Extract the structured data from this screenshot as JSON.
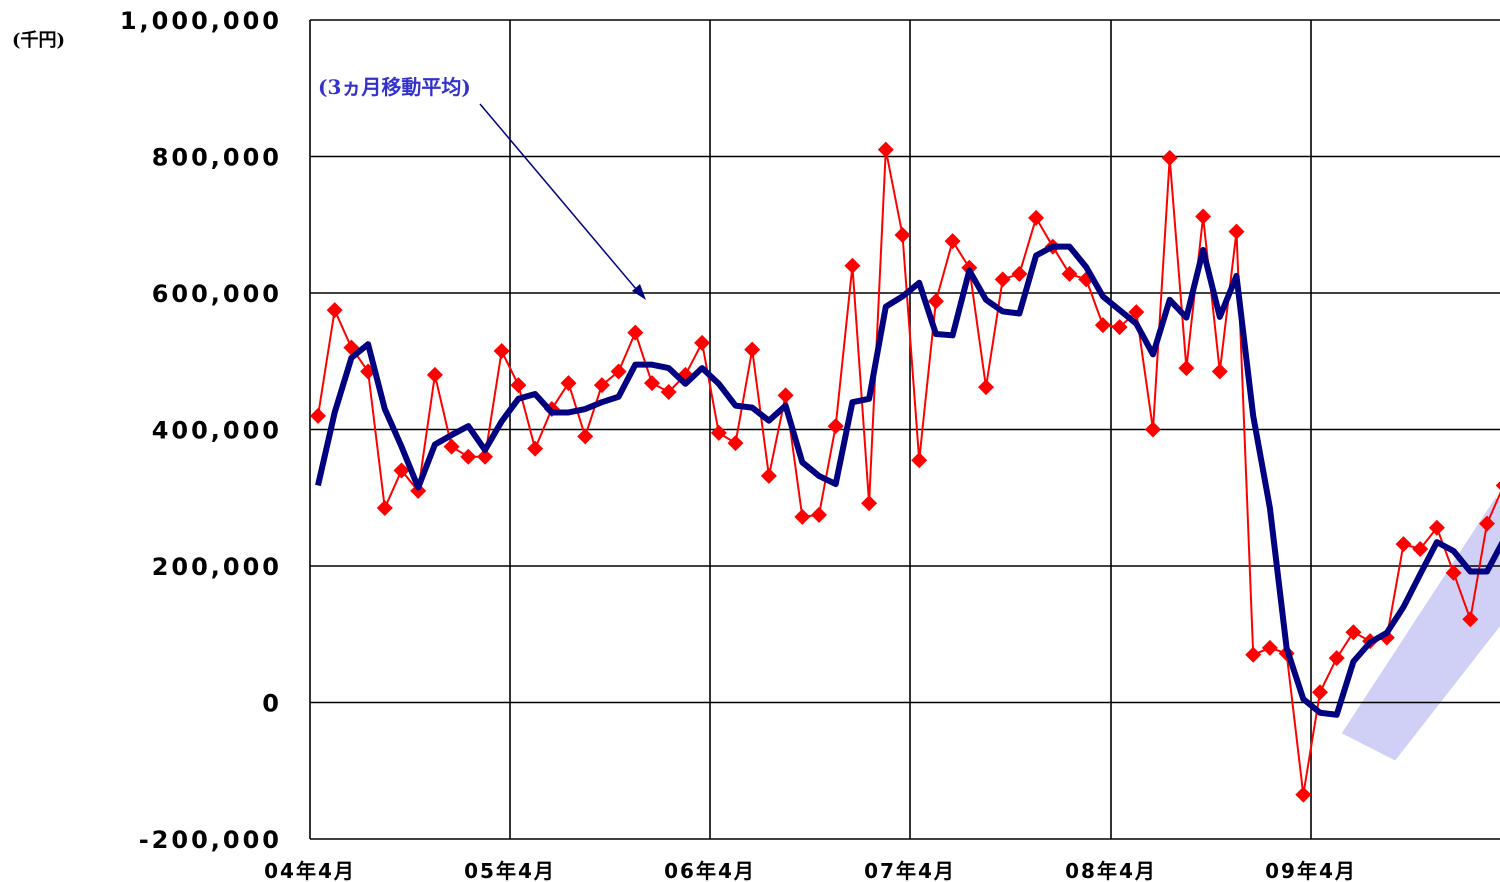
{
  "chart_data": {
    "type": "line",
    "unit_label": "(千円)",
    "annotation": "(3ヵ月移動平均)",
    "ylim": [
      -200000,
      1000000
    ],
    "y_ticks": [
      {
        "value": 1000000,
        "label": "1,000,000"
      },
      {
        "value": 800000,
        "label": "800,000"
      },
      {
        "value": 600000,
        "label": "600,000"
      },
      {
        "value": 400000,
        "label": "400,000"
      },
      {
        "value": 200000,
        "label": "200,000"
      },
      {
        "value": 0,
        "label": "0"
      },
      {
        "value": -200000,
        "label": "-200,000"
      }
    ],
    "x_ticks": [
      {
        "index": 0,
        "label": "04年4月"
      },
      {
        "index": 12,
        "label": "05年4月"
      },
      {
        "index": 24,
        "label": "06年4月"
      },
      {
        "index": 36,
        "label": "07年4月"
      },
      {
        "index": 48,
        "label": "08年4月"
      },
      {
        "index": 60,
        "label": "09年4月"
      }
    ],
    "grid": true,
    "colors": {
      "monthly": "#ff0000",
      "moving_average": "#000080",
      "trend_band": "#c8c8f5"
    },
    "series": [
      {
        "key": "monthly",
        "values": [
          420000,
          575000,
          520000,
          485000,
          285000,
          340000,
          310000,
          480000,
          375000,
          360000,
          360000,
          515000,
          465000,
          372000,
          430000,
          468000,
          390000,
          465000,
          485000,
          542000,
          468000,
          455000,
          480000,
          527000,
          395000,
          380000,
          517000,
          332000,
          450000,
          272000,
          275000,
          405000,
          640000,
          292000,
          810000,
          685000,
          355000,
          588000,
          676000,
          637000,
          462000,
          620000,
          628000,
          710000,
          668000,
          628000,
          620000,
          553000,
          550000,
          572000,
          400000,
          798000,
          490000,
          712000,
          485000,
          690000,
          70000,
          80000,
          72000,
          -135000,
          15000,
          65000,
          103000,
          90000,
          95000,
          232000,
          225000,
          256000,
          190000,
          122000,
          262000,
          318000
        ]
      },
      {
        "key": "moving_average",
        "values": [
          318000,
          425000,
          505000,
          525000,
          430000,
          375000,
          315000,
          378000,
          392000,
          405000,
          370000,
          412000,
          445000,
          452000,
          425000,
          425000,
          430000,
          440000,
          448000,
          495000,
          495000,
          490000,
          467000,
          490000,
          467000,
          435000,
          432000,
          413000,
          435000,
          352000,
          332000,
          320000,
          440000,
          445000,
          580000,
          595000,
          615000,
          540000,
          538000,
          633000,
          590000,
          573000,
          570000,
          655000,
          668000,
          668000,
          638000,
          595000,
          575000,
          555000,
          510000,
          590000,
          564000,
          663000,
          565000,
          625000,
          420000,
          285000,
          80000,
          5000,
          -15000,
          -18000,
          60000,
          88000,
          102000,
          140000,
          188000,
          235000,
          222000,
          192000,
          192000,
          238000
        ]
      }
    ]
  }
}
